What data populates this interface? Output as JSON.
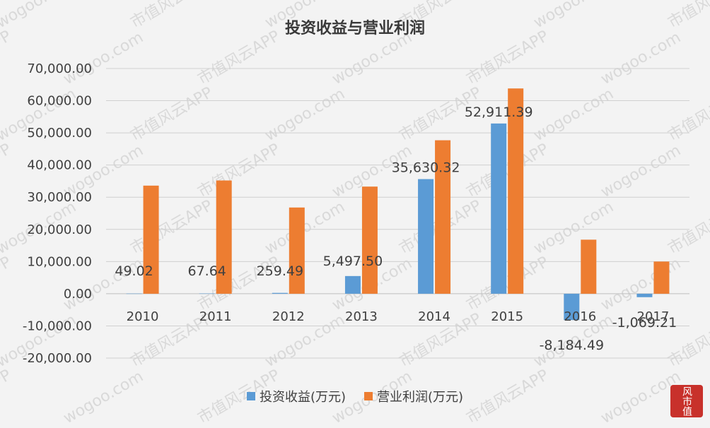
{
  "chart_data": {
    "type": "bar",
    "title": "投资收益与营业利润",
    "categories": [
      "2010",
      "2011",
      "2012",
      "2013",
      "2014",
      "2015",
      "2016",
      "2017"
    ],
    "series": [
      {
        "name": "投资收益(万元)",
        "color": "#5b9bd5",
        "values": [
          49.02,
          67.64,
          259.49,
          5497.5,
          35630.32,
          52911.39,
          -8184.49,
          -1069.21
        ],
        "data_labels": [
          "49.02",
          "67.64",
          "259.49",
          "5,497.50",
          "35,630.32",
          "52,911.39",
          "-8,184.49",
          "-1,069.21"
        ]
      },
      {
        "name": "营业利润(万元)",
        "color": "#ed7d31",
        "values": [
          33600,
          35200,
          26800,
          33300,
          47700,
          63800,
          16800,
          10000
        ]
      }
    ],
    "ylim": [
      -20000,
      70000
    ],
    "yticks": [
      70000,
      60000,
      50000,
      40000,
      30000,
      20000,
      10000,
      0,
      -10000,
      -20000
    ],
    "ytick_labels": [
      "70,000.00",
      "60,000.00",
      "50,000.00",
      "40,000.00",
      "30,000.00",
      "20,000.00",
      "10,000.00",
      "0.00",
      "-10,000.00",
      "-20,000.00"
    ],
    "grid": true,
    "legend_position": "bottom",
    "xlabel": "",
    "ylabel": ""
  },
  "watermark": {
    "text_app": "市值风云APP",
    "text_site": "wogoo.com",
    "seal": "风 市值"
  }
}
